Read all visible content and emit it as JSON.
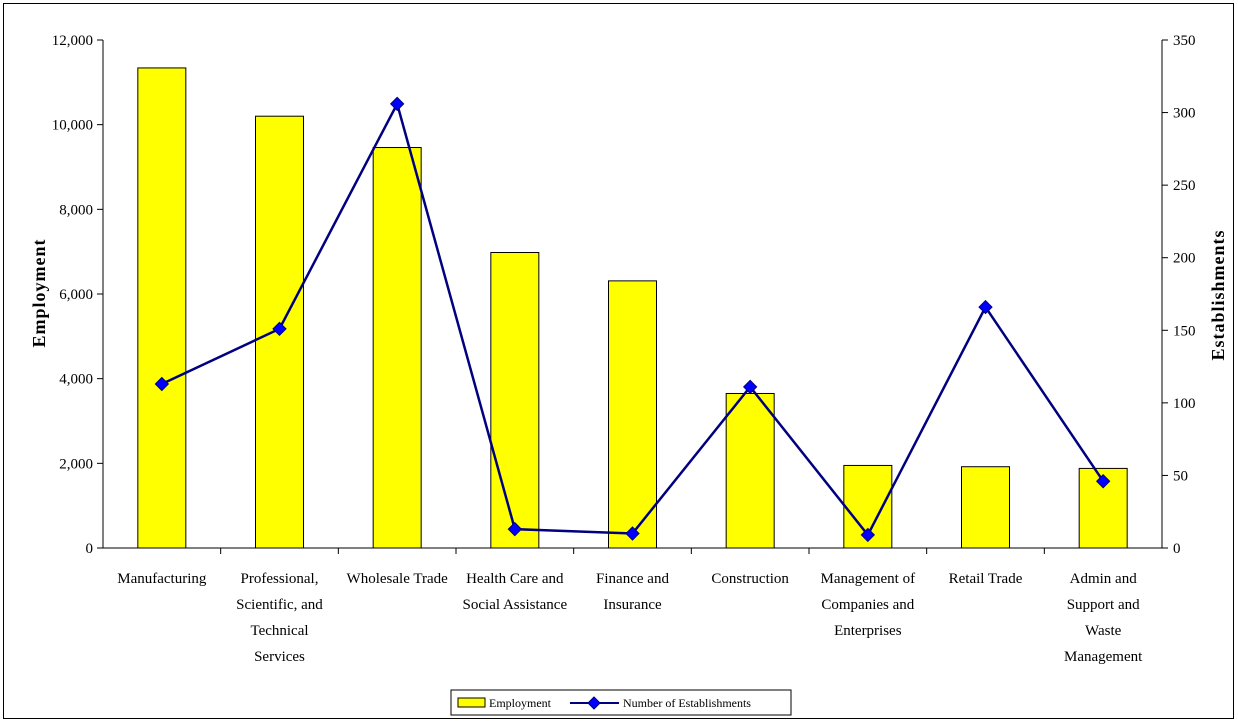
{
  "chart_data": {
    "type": "bar",
    "categories": [
      [
        "Manufacturing"
      ],
      [
        "Professional,",
        "Scientific, and",
        "Technical",
        "Services"
      ],
      [
        "Wholesale Trade"
      ],
      [
        "Health Care and",
        "Social Assistance"
      ],
      [
        "Finance and",
        "Insurance"
      ],
      [
        "Construction"
      ],
      [
        "Management of",
        "Companies and",
        "Enterprises"
      ],
      [
        "Retail Trade"
      ],
      [
        "Admin and",
        "Support and",
        "Waste",
        "Management"
      ]
    ],
    "series": [
      {
        "name": "Employment",
        "type": "bar",
        "axis": "left",
        "color": "#FFFF00",
        "values": [
          11340,
          10200,
          9460,
          6980,
          6310,
          3650,
          1950,
          1920,
          1880
        ]
      },
      {
        "name": "Number of Establishments",
        "type": "line",
        "axis": "right",
        "color": "#000080",
        "values": [
          113,
          151,
          306,
          13,
          10,
          111,
          9,
          166,
          46
        ]
      }
    ],
    "ylabel": "Employment",
    "y2label": "Establishments",
    "ylim": [
      0,
      12000
    ],
    "y2lim": [
      0,
      350
    ],
    "yticks": [
      "0",
      "2,000",
      "4,000",
      "6,000",
      "8,000",
      "10,000",
      "12,000"
    ],
    "y2ticks": [
      "0",
      "50",
      "100",
      "150",
      "200",
      "250",
      "300",
      "350"
    ],
    "grid": false,
    "legend_position": "bottom"
  }
}
